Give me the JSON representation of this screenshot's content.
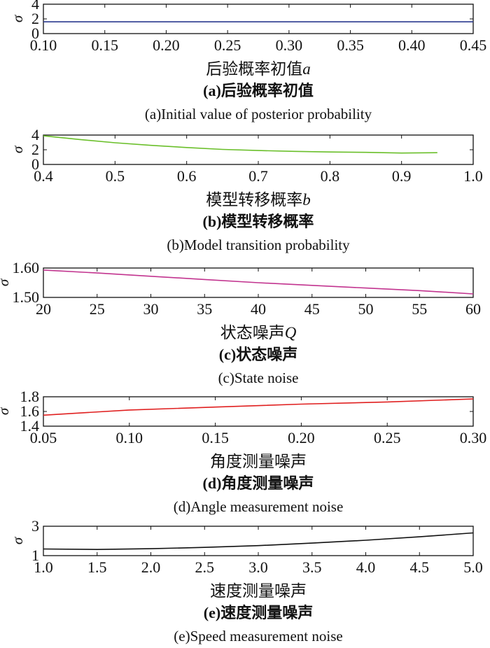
{
  "chart_data": [
    {
      "type": "line",
      "xlabel": "后验概率初值",
      "xlabel_var": "a",
      "ylabel": "σ",
      "caption_cn": "(a)后验概率初值",
      "caption_en": "(a)Initial value of posterior probability",
      "xlim": [
        0.1,
        0.45
      ],
      "ylim": [
        0,
        4
      ],
      "x_ticks": [
        "0.10",
        "0.15",
        "0.20",
        "0.25",
        "0.30",
        "0.35",
        "0.40",
        "0.45"
      ],
      "y_ticks": [
        "0",
        "2",
        "4"
      ],
      "series": [
        {
          "color": "#2b3a8f",
          "x": [
            0.1,
            0.15,
            0.2,
            0.25,
            0.3,
            0.35,
            0.4,
            0.45
          ],
          "y": [
            1.6,
            1.6,
            1.6,
            1.6,
            1.6,
            1.6,
            1.6,
            1.6
          ]
        }
      ]
    },
    {
      "type": "line",
      "xlabel": "模型转移概率",
      "xlabel_var": "b",
      "ylabel": "σ",
      "caption_cn": "(b)模型转移概率",
      "caption_en": "(b)Model transition probability",
      "xlim": [
        0.4,
        1.0
      ],
      "ylim": [
        0,
        4
      ],
      "x_ticks": [
        "0.4",
        "0.5",
        "0.6",
        "0.7",
        "0.8",
        "0.9",
        "1.0"
      ],
      "y_ticks": [
        "0",
        "2",
        "4"
      ],
      "series": [
        {
          "color": "#6abf2a",
          "x": [
            0.4,
            0.45,
            0.5,
            0.55,
            0.6,
            0.65,
            0.7,
            0.75,
            0.8,
            0.85,
            0.9,
            0.95
          ],
          "y": [
            3.9,
            3.4,
            2.95,
            2.6,
            2.3,
            2.05,
            1.9,
            1.78,
            1.7,
            1.65,
            1.55,
            1.6
          ]
        }
      ]
    },
    {
      "type": "line",
      "xlabel": "状态噪声",
      "xlabel_var": "Q",
      "ylabel": "σ",
      "caption_cn": "(c)状态噪声",
      "caption_en": "(c)State noise",
      "xlim": [
        20,
        60
      ],
      "ylim": [
        1.5,
        1.6
      ],
      "x_ticks": [
        "20",
        "25",
        "30",
        "35",
        "40",
        "45",
        "50",
        "55",
        "60"
      ],
      "y_ticks": [
        "1.50",
        "1.60"
      ],
      "series": [
        {
          "color": "#c2348f",
          "x": [
            20,
            25,
            30,
            35,
            40,
            45,
            50,
            55,
            60
          ],
          "y": [
            1.593,
            1.583,
            1.572,
            1.561,
            1.55,
            1.541,
            1.532,
            1.523,
            1.512
          ]
        }
      ]
    },
    {
      "type": "line",
      "xlabel": "角度测量噪声",
      "xlabel_var": "",
      "ylabel": "σ",
      "caption_cn": "(d)角度测量噪声",
      "caption_en": "(d)Angle measurement noise",
      "xlim": [
        0.05,
        0.3
      ],
      "ylim": [
        1.4,
        1.8
      ],
      "x_ticks": [
        "0.05",
        "0.10",
        "0.15",
        "0.20",
        "0.25",
        "0.30"
      ],
      "y_ticks": [
        "1.4",
        "1.6",
        "1.8"
      ],
      "series": [
        {
          "color": "#e02020",
          "x": [
            0.05,
            0.1,
            0.15,
            0.2,
            0.25,
            0.3
          ],
          "y": [
            1.55,
            1.62,
            1.66,
            1.7,
            1.73,
            1.77
          ]
        }
      ]
    },
    {
      "type": "line",
      "xlabel": "速度测量噪声",
      "xlabel_var": "",
      "ylabel": "σ",
      "caption_cn": "(e)速度测量噪声",
      "caption_en": "(e)Speed measurement noise",
      "xlim": [
        1.0,
        5.0
      ],
      "ylim": [
        1,
        3
      ],
      "x_ticks": [
        "1.0",
        "1.5",
        "2.0",
        "2.5",
        "3.0",
        "3.5",
        "4.0",
        "4.5",
        "5.0"
      ],
      "y_ticks": [
        "1",
        "3"
      ],
      "series": [
        {
          "color": "#111111",
          "x": [
            1.0,
            1.5,
            2.0,
            2.5,
            3.0,
            3.5,
            4.0,
            4.5,
            5.0
          ],
          "y": [
            1.45,
            1.42,
            1.47,
            1.56,
            1.68,
            1.85,
            2.05,
            2.28,
            2.55
          ]
        }
      ]
    }
  ]
}
